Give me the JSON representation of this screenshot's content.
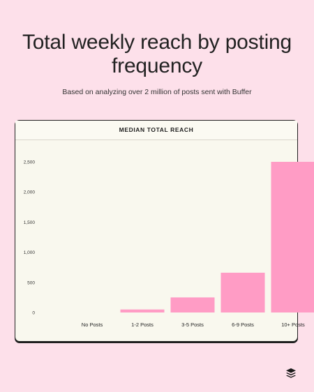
{
  "title": "Total weekly reach by posting frequency",
  "subtitle": "Based on analyzing over 2 million of posts sent with Buffer",
  "logo_icon": "buffer-stack-icon",
  "colors": {
    "background": "#fde0ea",
    "bar": "#ff9cc5",
    "card": "#f9f8ee"
  },
  "chart_data": {
    "type": "bar",
    "title": "MEDIAN TOTAL REACH",
    "categories": [
      "No Posts",
      "1-2 Posts",
      "3-5 Posts",
      "6-9 Posts",
      "10+ Posts"
    ],
    "values": [
      0,
      50,
      250,
      660,
      2500
    ],
    "yticks": [
      0,
      500,
      1000,
      1500,
      2000,
      2500
    ],
    "ytick_labels": [
      "0",
      "500",
      "1,000",
      "1,500",
      "2,000",
      "2,500"
    ],
    "ylim": [
      0,
      2500
    ],
    "grid": false,
    "xlabel": "",
    "ylabel": ""
  }
}
